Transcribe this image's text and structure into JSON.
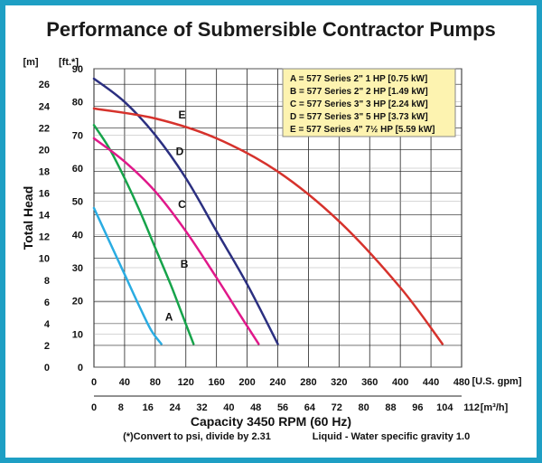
{
  "chart_data": {
    "type": "line",
    "title": "Performance of Submersible Contractor Pumps",
    "xlabel": "Capacity 3450 RPM (60 Hz)",
    "ylabel": "Total Head",
    "x_unit_primary": "[U.S. gpm]",
    "x_unit_secondary": "[m³/h]",
    "y_unit_left": "[m]",
    "y_unit_right": "[ft.*]",
    "xlim": [
      0,
      480
    ],
    "ylim": [
      0,
      90
    ],
    "x_ticks_gpm": [
      "0",
      "40",
      "80",
      "120",
      "160",
      "200",
      "240",
      "280",
      "320",
      "360",
      "400",
      "440",
      "480"
    ],
    "x_ticks_m3h": [
      "0",
      "8",
      "16",
      "24",
      "32",
      "40",
      "48",
      "56",
      "64",
      "72",
      "80",
      "88",
      "96",
      "104",
      "112"
    ],
    "y_ticks_ft": [
      "0",
      "10",
      "20",
      "30",
      "40",
      "50",
      "60",
      "70",
      "80",
      "90"
    ],
    "y_ticks_m": [
      "0",
      "2",
      "4",
      "6",
      "8",
      "10",
      "12",
      "14",
      "16",
      "18",
      "20",
      "22",
      "24",
      "26"
    ],
    "note_left": "(*)Convert to psi, divide by 2.31",
    "note_right": "Liquid - Water specific gravity 1.0",
    "legend_placement": "top-right",
    "legend": [
      "A = 577 Series 2\" 1 HP [0.75 kW]",
      "B = 577 Series 2\" 2 HP [1.49 kW]",
      "C = 577 Series 3\" 3 HP [2.24 kW]",
      "D = 577 Series 3\" 5 HP [3.73 kW]",
      "E = 577 Series 4\" 7½ HP [5.59 kW]"
    ],
    "series": [
      {
        "name": "A",
        "color": "#2aace2",
        "x": [
          0,
          20,
          40,
          60,
          75,
          88
        ],
        "y": [
          48,
          38,
          28,
          18,
          11,
          7
        ]
      },
      {
        "name": "B",
        "color": "#16a34a",
        "x": [
          0,
          20,
          40,
          60,
          80,
          100,
          115,
          130
        ],
        "y": [
          73,
          66,
          57,
          47,
          36,
          25,
          16,
          7
        ]
      },
      {
        "name": "C",
        "color": "#e0188a",
        "x": [
          0,
          40,
          80,
          120,
          160,
          190,
          215
        ],
        "y": [
          69,
          62,
          53,
          41,
          27,
          16,
          7
        ]
      },
      {
        "name": "D",
        "color": "#2b2f80",
        "x": [
          0,
          40,
          80,
          120,
          160,
          200,
          240
        ],
        "y": [
          87,
          80,
          70,
          57,
          41,
          25,
          7
        ]
      },
      {
        "name": "E",
        "color": "#d6322c",
        "x": [
          0,
          80,
          160,
          240,
          320,
          400,
          455
        ],
        "y": [
          78,
          75,
          69,
          59,
          44,
          24,
          7
        ]
      }
    ],
    "curve_labels": [
      "A",
      "B",
      "C",
      "D",
      "E"
    ],
    "grid": true
  }
}
